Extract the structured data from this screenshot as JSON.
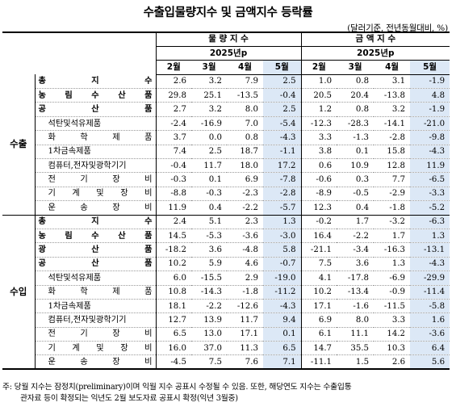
{
  "title": "수출입물량지수 및 금액지수 등락률",
  "unit": "(달러기준, 전년동월대비, %)",
  "groups": [
    {
      "label": "물 량 지 수",
      "year": "2025년p"
    },
    {
      "label": "금 액 지 수",
      "year": "2025년p"
    }
  ],
  "months": [
    "2월",
    "3월",
    "4월",
    "5월"
  ],
  "sections": [
    {
      "category": "수출",
      "rows": [
        {
          "label": "총 지 수",
          "bold": true,
          "sub": false,
          "q": [
            "2.6",
            "3.2",
            "7.9",
            "2.5"
          ],
          "v": [
            "1.0",
            "0.8",
            "3.1",
            "-1.9"
          ]
        },
        {
          "label": "농 림 수 산 품",
          "bold": true,
          "sub": false,
          "q": [
            "29.8",
            "25.1",
            "-13.5",
            "-0.4"
          ],
          "v": [
            "20.5",
            "20.4",
            "-13.8",
            "4.8"
          ]
        },
        {
          "label": "공 산 품",
          "bold": true,
          "sub": false,
          "q": [
            "2.7",
            "3.2",
            "8.0",
            "2.5"
          ],
          "v": [
            "1.2",
            "0.8",
            "3.2",
            "-1.9"
          ]
        },
        {
          "label": "석탄및석유제품",
          "bold": false,
          "sub": true,
          "q": [
            "-2.4",
            "-16.9",
            "7.0",
            "-5.4"
          ],
          "v": [
            "-12.3",
            "-28.3",
            "-14.1",
            "-21.0"
          ]
        },
        {
          "label": "화 학 제 품",
          "bold": false,
          "sub": true,
          "q": [
            "3.7",
            "0.0",
            "0.8",
            "-4.3"
          ],
          "v": [
            "3.3",
            "-1.3",
            "-2.8",
            "-9.8"
          ]
        },
        {
          "label": "1차금속제품",
          "bold": false,
          "sub": true,
          "q": [
            "7.4",
            "2.5",
            "18.7",
            "-1.1"
          ],
          "v": [
            "3.8",
            "0.1",
            "15.8",
            "-4.3"
          ]
        },
        {
          "label": "컴퓨터,전자및광학기기",
          "bold": false,
          "sub": true,
          "q": [
            "-0.4",
            "11.7",
            "18.0",
            "17.2"
          ],
          "v": [
            "0.6",
            "10.9",
            "12.8",
            "11.9"
          ]
        },
        {
          "label": "전 기 장 비",
          "bold": false,
          "sub": true,
          "q": [
            "-0.3",
            "0.1",
            "6.9",
            "-7.8"
          ],
          "v": [
            "-0.6",
            "0.3",
            "7.7",
            "-6.5"
          ]
        },
        {
          "label": "기 계 및 장 비",
          "bold": false,
          "sub": true,
          "q": [
            "-8.8",
            "-0.3",
            "-2.3",
            "-2.8"
          ],
          "v": [
            "-8.9",
            "-0.5",
            "-2.9",
            "-3.3"
          ]
        },
        {
          "label": "운 송 장 비",
          "bold": false,
          "sub": true,
          "q": [
            "11.9",
            "0.4",
            "-2.2",
            "-5.7"
          ],
          "v": [
            "12.3",
            "0.4",
            "-1.8",
            "-5.2"
          ]
        }
      ]
    },
    {
      "category": "수입",
      "rows": [
        {
          "label": "총 지 수",
          "bold": true,
          "sub": false,
          "q": [
            "2.4",
            "5.1",
            "2.3",
            "1.3"
          ],
          "v": [
            "-0.2",
            "1.7",
            "-3.2",
            "-6.3"
          ]
        },
        {
          "label": "농 림 수 산 품",
          "bold": true,
          "sub": false,
          "q": [
            "14.5",
            "-5.3",
            "-3.6",
            "-3.0"
          ],
          "v": [
            "16.4",
            "-2.2",
            "1.7",
            "1.3"
          ]
        },
        {
          "label": "광 산 품",
          "bold": true,
          "sub": false,
          "q": [
            "-18.2",
            "3.6",
            "-4.8",
            "5.8"
          ],
          "v": [
            "-21.1",
            "-3.4",
            "-16.3",
            "-13.1"
          ]
        },
        {
          "label": "공 산 품",
          "bold": true,
          "sub": false,
          "q": [
            "10.2",
            "5.9",
            "4.6",
            "-0.7"
          ],
          "v": [
            "7.5",
            "3.6",
            "1.3",
            "-4.3"
          ]
        },
        {
          "label": "석탄및석유제품",
          "bold": false,
          "sub": true,
          "q": [
            "6.0",
            "-15.5",
            "2.9",
            "-19.0"
          ],
          "v": [
            "4.1",
            "-17.8",
            "-6.9",
            "-29.9"
          ]
        },
        {
          "label": "화 학 제 품",
          "bold": false,
          "sub": true,
          "q": [
            "10.8",
            "-14.3",
            "-1.8",
            "-11.2"
          ],
          "v": [
            "10.2",
            "-13.4",
            "-0.9",
            "-11.4"
          ]
        },
        {
          "label": "1차금속제품",
          "bold": false,
          "sub": true,
          "q": [
            "18.1",
            "-2.2",
            "-12.6",
            "-4.3"
          ],
          "v": [
            "17.1",
            "-1.6",
            "-11.5",
            "-5.8"
          ]
        },
        {
          "label": "컴퓨터,전자및광학기기",
          "bold": false,
          "sub": true,
          "q": [
            "12.7",
            "13.9",
            "11.7",
            "9.4"
          ],
          "v": [
            "6.9",
            "8.0",
            "3.3",
            "1.6"
          ]
        },
        {
          "label": "전 기 장 비",
          "bold": false,
          "sub": true,
          "q": [
            "6.5",
            "13.0",
            "17.1",
            "0.1"
          ],
          "v": [
            "6.1",
            "11.1",
            "14.2",
            "-3.6"
          ]
        },
        {
          "label": "기 계 및 장 비",
          "bold": false,
          "sub": true,
          "q": [
            "16.0",
            "37.0",
            "11.3",
            "6.5"
          ],
          "v": [
            "14.7",
            "35.5",
            "10.3",
            "6.4"
          ]
        },
        {
          "label": "운 송 장 비",
          "bold": false,
          "sub": true,
          "q": [
            "-4.5",
            "7.5",
            "7.6",
            "7.1"
          ],
          "v": [
            "-11.1",
            "1.5",
            "2.6",
            "5.6"
          ]
        }
      ]
    }
  ],
  "footnote": {
    "line1": "주: 당월 지수는 잠정치(preliminary)이며 익월 지수 공표시 수정될 수 있음. 또한, 해당연도 지수는 수출입통",
    "line2": "관자료 등이 확정되는 익년도 2월 보도자료 공표시 확정(익년 3월중)"
  },
  "colors": {
    "highlight": "#dce8f6",
    "rule": "#000000"
  }
}
